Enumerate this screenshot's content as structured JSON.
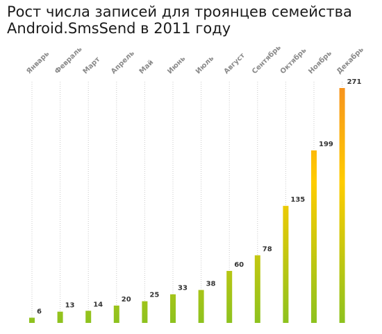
{
  "title_line1": "Рост числа записей для троянцев семейства",
  "title_line2": "Android.SmsSend в 2011 году",
  "colors": {
    "bar_bottom": "#8dc21f",
    "bar_mid": "#ffcc00",
    "bar_top": "#f7941d"
  },
  "chart_data": {
    "type": "bar",
    "title": "Рост числа записей для троянцев семейства Android.SmsSend в 2011 году",
    "categories": [
      "Январь",
      "Февраль",
      "Март",
      "Апрель",
      "Май",
      "Июнь",
      "Июль",
      "Август",
      "Сентябрь",
      "Октябрь",
      "Ноябрь",
      "Декабрь"
    ],
    "values": [
      6,
      13,
      14,
      20,
      25,
      33,
      38,
      60,
      78,
      135,
      199,
      271
    ],
    "ylim": [
      0,
      271
    ],
    "grid": "vertical dotted guide per category",
    "legend": "none"
  }
}
